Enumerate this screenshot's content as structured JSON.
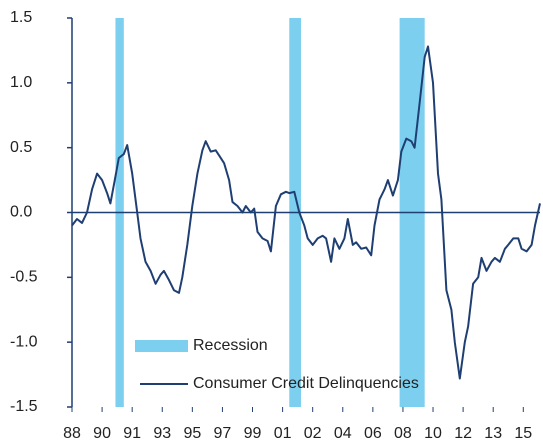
{
  "chart_data": {
    "type": "line",
    "x": [
      1988.0,
      1988.3,
      1988.6,
      1988.9,
      1989.2,
      1989.5,
      1989.8,
      1990.1,
      1990.3,
      1990.6,
      1990.8,
      1991.1,
      1991.3,
      1991.6,
      1991.9,
      1992.1,
      1992.4,
      1992.7,
      1993.0,
      1993.3,
      1993.5,
      1993.8,
      1994.1,
      1994.4,
      1994.6,
      1994.9,
      1995.2,
      1995.5,
      1995.8,
      1996.0,
      1996.3,
      1996.6,
      1996.8,
      1997.1,
      1997.4,
      1997.6,
      1997.9,
      1998.2,
      1998.4,
      1998.7,
      1998.9,
      1999.1,
      1999.4,
      1999.7,
      1999.9,
      2000.2,
      2000.5,
      2000.8,
      2001.0,
      2001.3,
      2001.6,
      2001.9,
      2002.1,
      2002.4,
      2002.7,
      2003.0,
      2003.2,
      2003.5,
      2003.7,
      2004.0,
      2004.3,
      2004.5,
      2004.8,
      2005.0,
      2005.3,
      2005.6,
      2005.9,
      2006.1,
      2006.4,
      2006.7,
      2006.9,
      2007.2,
      2007.5,
      2007.7,
      2008.0,
      2008.3,
      2008.5,
      2008.8,
      2009.1,
      2009.3,
      2009.6,
      2009.9,
      2010.1,
      2010.4,
      2010.7,
      2010.9,
      2011.2,
      2011.5,
      2011.7,
      2012.0,
      2012.3,
      2012.5,
      2012.8,
      2013.1,
      2013.3,
      2013.6,
      2013.9,
      2014.1,
      2014.4,
      2014.7,
      2014.9,
      2015.2,
      2015.5,
      2015.7,
      2016.0
    ],
    "series": [
      {
        "name": "Consumer Credit Delinquencies",
        "color": "#1f3f73",
        "values": [
          -0.1,
          -0.05,
          -0.08,
          0.0,
          0.18,
          0.3,
          0.25,
          0.15,
          0.07,
          0.28,
          0.42,
          0.45,
          0.52,
          0.3,
          0.0,
          -0.2,
          -0.38,
          -0.45,
          -0.55,
          -0.48,
          -0.45,
          -0.52,
          -0.6,
          -0.62,
          -0.5,
          -0.25,
          0.05,
          0.3,
          0.48,
          0.55,
          0.47,
          0.48,
          0.44,
          0.38,
          0.25,
          0.08,
          0.05,
          0.0,
          0.05,
          0.0,
          0.03,
          -0.15,
          -0.2,
          -0.22,
          -0.3,
          0.05,
          0.14,
          0.16,
          0.15,
          0.16,
          0.0,
          -0.1,
          -0.2,
          -0.25,
          -0.2,
          -0.18,
          -0.2,
          -0.38,
          -0.2,
          -0.28,
          -0.2,
          -0.05,
          -0.25,
          -0.23,
          -0.28,
          -0.27,
          -0.33,
          -0.1,
          0.1,
          0.18,
          0.25,
          0.13,
          0.25,
          0.47,
          0.57,
          0.55,
          0.5,
          0.85,
          1.2,
          1.28,
          1.0,
          0.3,
          0.1,
          -0.6,
          -0.75,
          -1.0,
          -1.28,
          -1.0,
          -0.88,
          -0.55,
          -0.5,
          -0.35,
          -0.45,
          -0.38,
          -0.35,
          -0.38,
          -0.28,
          -0.25,
          -0.2,
          -0.2,
          -0.28,
          -0.3,
          -0.25,
          -0.1,
          0.07
        ]
      }
    ],
    "bands": {
      "name": "Recession",
      "color": "#7ccfef",
      "ranges": [
        [
          1990.6,
          1991.1
        ],
        [
          2001.0,
          2001.7
        ],
        [
          2007.6,
          2009.1
        ]
      ]
    },
    "xlim": [
      1988,
      2016
    ],
    "xticks": [
      {
        "value": 1988.0,
        "label": "88"
      },
      {
        "value": 1989.8,
        "label": "90"
      },
      {
        "value": 1991.6,
        "label": "91"
      },
      {
        "value": 1993.4,
        "label": "93"
      },
      {
        "value": 1995.2,
        "label": "95"
      },
      {
        "value": 1997.0,
        "label": "97"
      },
      {
        "value": 1998.8,
        "label": "99"
      },
      {
        "value": 2000.6,
        "label": "01"
      },
      {
        "value": 2002.4,
        "label": "02"
      },
      {
        "value": 2004.2,
        "label": "04"
      },
      {
        "value": 2006.0,
        "label": "06"
      },
      {
        "value": 2007.8,
        "label": "08"
      },
      {
        "value": 2009.6,
        "label": "10"
      },
      {
        "value": 2011.4,
        "label": "12"
      },
      {
        "value": 2013.2,
        "label": "13"
      },
      {
        "value": 2015.0,
        "label": "15"
      }
    ],
    "ylim": [
      -1.5,
      1.5
    ],
    "yticks": [
      -1.5,
      {
        "value": -1.0,
        "label": "-1.0"
      },
      -0.5,
      {
        "value": 0.0,
        "label": "0.0"
      },
      0.5,
      {
        "value": 1.0,
        "label": "1.0"
      },
      1.5
    ],
    "legend": "lower center"
  }
}
